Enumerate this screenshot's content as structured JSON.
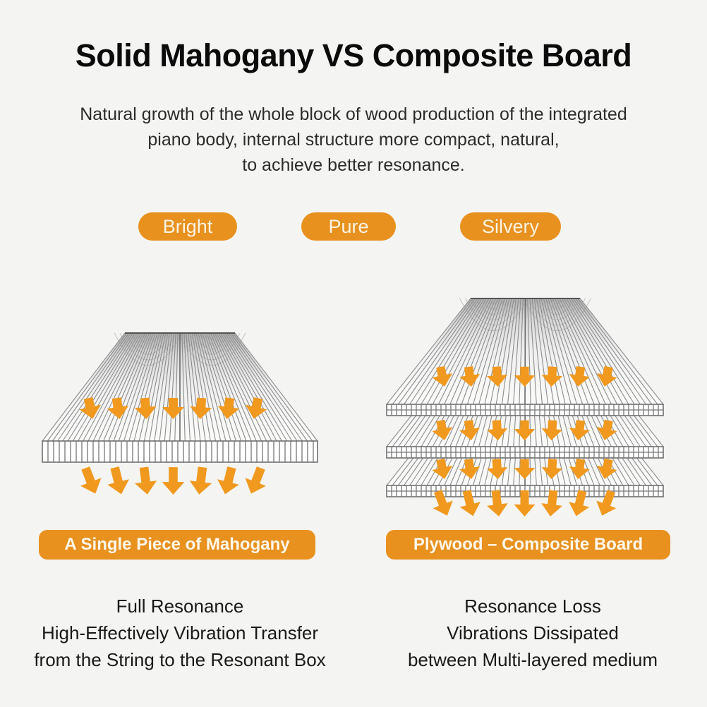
{
  "title": "Solid Mahogany VS Composite Board",
  "intro": {
    "line1": "Natural growth of the whole block of wood production of the integrated",
    "line2": "piano body, internal structure more compact, natural,",
    "line3": "to achieve better resonance."
  },
  "tone_badges": [
    {
      "label": "Bright"
    },
    {
      "label": "Pure"
    },
    {
      "label": "Silvery"
    }
  ],
  "colors": {
    "accent_orange": "#E8911F",
    "arrow_orange": "#F0991E",
    "background": "#f4f4f2",
    "wood_line_gray": "#8c8c8c"
  },
  "left_panel": {
    "banner": "A Single Piece of Mahogany",
    "caption_line1": "Full Resonance",
    "caption_line2": "High-Effectively Vibration Transfer",
    "caption_line3": "from the String to the Resonant Box",
    "diagram": {
      "type": "solid-board",
      "layers": 1,
      "arrows_per_row": 7,
      "arrow_rows": 2
    }
  },
  "right_panel": {
    "banner": "Plywood – Composite Board",
    "caption_line1": "Resonance Loss",
    "caption_line2": "Vibrations Dissipated",
    "caption_line3": "between Multi-layered medium",
    "diagram": {
      "type": "plywood-stack",
      "layers": 3,
      "arrows_per_row": 7,
      "arrow_rows": 4
    }
  }
}
